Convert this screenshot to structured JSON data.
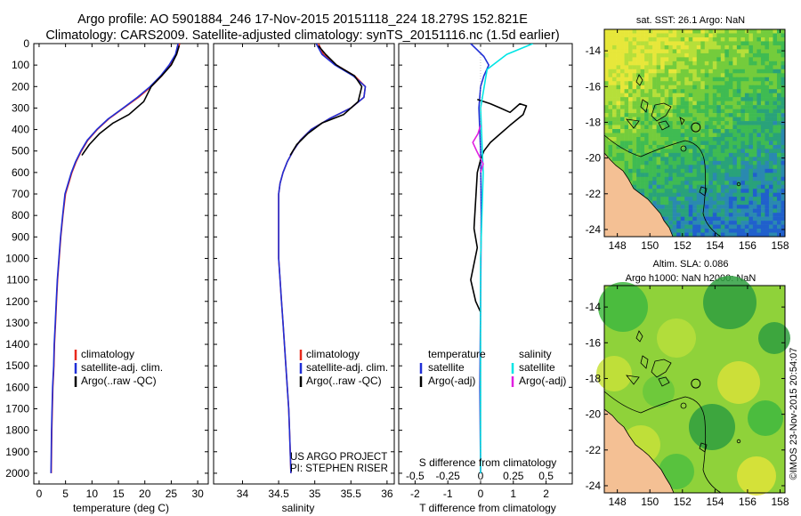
{
  "header": {
    "line1": "Argo profile: AO 5901884_246 17-Nov-2015 20151118_224 18.279S 152.821E",
    "line2": "Climatology: CARS2009. Satellite-adjusted climatology: synTS_20151116.nc (1.5d earlier)"
  },
  "depth_axis": {
    "range": [
      0,
      2050
    ],
    "ticks": [
      0,
      100,
      200,
      300,
      400,
      500,
      600,
      700,
      800,
      900,
      1000,
      1100,
      1200,
      1300,
      1400,
      1500,
      1600,
      1700,
      1800,
      1900,
      2000
    ]
  },
  "chart_data": [
    {
      "type": "line",
      "id": "temperature",
      "xlabel": "temperature (deg C)",
      "xlim": [
        -1,
        32
      ],
      "xticks": [
        0,
        5,
        10,
        15,
        20,
        25,
        30
      ],
      "ylim": [
        2050,
        0
      ],
      "legend": [
        {
          "label": "climatology",
          "color": "#e8291c"
        },
        {
          "label": "satellite-adj. clim.",
          "color": "#1f2ed6"
        },
        {
          "label": "Argo(..raw -QC)",
          "color": "#000000"
        }
      ],
      "series": [
        {
          "name": "climatology",
          "color": "#e8291c",
          "x": [
            26.6,
            26.0,
            24.8,
            23.2,
            21.2,
            18.8,
            16.0,
            13.2,
            11.0,
            9.2,
            8.0,
            7.0,
            6.2,
            5.6,
            5.0,
            4.5,
            4.1,
            3.8,
            3.5,
            3.3,
            3.1,
            2.9,
            2.8,
            2.6,
            2.5,
            2.4,
            2.35,
            2.3
          ],
          "y": [
            0,
            50,
            100,
            150,
            200,
            250,
            300,
            350,
            400,
            450,
            500,
            550,
            600,
            650,
            700,
            800,
            900,
            1000,
            1100,
            1200,
            1300,
            1400,
            1500,
            1600,
            1700,
            1800,
            1900,
            2000
          ]
        },
        {
          "name": "satellite",
          "color": "#1f2ed6",
          "x": [
            26.3,
            25.8,
            24.6,
            23.0,
            21.0,
            18.6,
            15.9,
            13.1,
            10.9,
            9.1,
            7.9,
            6.9,
            6.1,
            5.5,
            4.9,
            4.45,
            4.05,
            3.75,
            3.45,
            3.25,
            3.05,
            2.85,
            2.75,
            2.55,
            2.45,
            2.35,
            2.3,
            2.25
          ],
          "y": [
            0,
            50,
            100,
            150,
            200,
            250,
            300,
            350,
            400,
            450,
            500,
            550,
            600,
            650,
            700,
            800,
            900,
            1000,
            1100,
            1200,
            1300,
            1400,
            1500,
            1600,
            1700,
            1800,
            1900,
            2000
          ]
        },
        {
          "name": "argo",
          "color": "#000000",
          "x": [
            26.5,
            26.0,
            25.0,
            23.2,
            21.2,
            19.8,
            17.0,
            14.0,
            11.4,
            9.5,
            8.1
          ],
          "y": [
            10,
            50,
            100,
            150,
            200,
            270,
            330,
            370,
            420,
            470,
            520
          ]
        }
      ]
    },
    {
      "type": "line",
      "id": "salinity",
      "xlabel": "salinity",
      "xlim": [
        33.6,
        36.1
      ],
      "xticks": [
        34,
        34.5,
        35,
        35.5,
        36
      ],
      "ylim": [
        2050,
        0
      ],
      "legend": [
        {
          "label": "climatology",
          "color": "#e8291c"
        },
        {
          "label": "satellite-adj. clim.",
          "color": "#1f2ed6"
        },
        {
          "label": "Argo(..raw -QC)",
          "color": "#000000"
        }
      ],
      "series": [
        {
          "name": "climatology",
          "color": "#e8291c",
          "x": [
            35.05,
            35.12,
            35.3,
            35.55,
            35.7,
            35.68,
            35.5,
            35.2,
            34.95,
            34.8,
            34.7,
            34.62,
            34.56,
            34.52,
            34.5,
            34.5,
            34.5,
            34.5,
            34.52,
            34.54,
            34.56,
            34.58,
            34.6,
            34.62,
            34.64,
            34.65,
            34.66,
            34.67
          ],
          "y": [
            0,
            50,
            100,
            150,
            200,
            250,
            300,
            350,
            400,
            450,
            500,
            550,
            600,
            650,
            700,
            800,
            900,
            1000,
            1100,
            1200,
            1300,
            1400,
            1500,
            1600,
            1700,
            1800,
            1900,
            2000
          ]
        },
        {
          "name": "satellite",
          "color": "#1f2ed6",
          "x": [
            35.02,
            35.1,
            35.28,
            35.53,
            35.7,
            35.68,
            35.5,
            35.2,
            34.95,
            34.8,
            34.7,
            34.62,
            34.56,
            34.52,
            34.5,
            34.5,
            34.5,
            34.5,
            34.52,
            34.54,
            34.56,
            34.58,
            34.6,
            34.62,
            34.64,
            34.65,
            34.66,
            34.67
          ],
          "y": [
            0,
            50,
            100,
            150,
            200,
            250,
            300,
            350,
            400,
            450,
            500,
            550,
            600,
            650,
            700,
            800,
            900,
            1000,
            1100,
            1200,
            1300,
            1400,
            1500,
            1600,
            1700,
            1800,
            1900,
            2000
          ]
        },
        {
          "name": "argo",
          "color": "#000000",
          "x": [
            35.05,
            35.15,
            35.3,
            35.55,
            35.65,
            35.6,
            35.4,
            35.1,
            34.9,
            34.75,
            34.66
          ],
          "y": [
            10,
            50,
            100,
            150,
            200,
            270,
            330,
            370,
            420,
            470,
            520
          ]
        }
      ],
      "credit": [
        "US ARGO PROJECT",
        "PI: STEPHEN RISER"
      ]
    },
    {
      "type": "line",
      "id": "difference",
      "xlabel_top": "S difference from climatology",
      "xlabel": "T difference from climatology",
      "xlim": [
        -2.5,
        2.8
      ],
      "xticks_T": [
        -2,
        -1,
        0,
        1,
        2
      ],
      "xticks_S": [
        -0.5,
        -0.25,
        0,
        0.25,
        0.5
      ],
      "ylim": [
        2050,
        0
      ],
      "legend_titles": [
        "temperature",
        "salinity"
      ],
      "legend": [
        {
          "label": "satellite",
          "color": "#1f2ed6"
        },
        {
          "label": "Argo(-adj)",
          "color": "#000000"
        },
        {
          "label": "satellite",
          "color": "#00e5e5"
        },
        {
          "label": "Argo(-adj)",
          "color": "#e01ee0"
        }
      ],
      "series": [
        {
          "name": "T satellite",
          "color": "#1f2ed6",
          "x": [
            -0.3,
            -0.1,
            0.1,
            0.25,
            0.1,
            0.0,
            -0.05,
            0.0,
            0.02,
            0.0,
            -0.02,
            0.0
          ],
          "y": [
            0,
            30,
            60,
            100,
            150,
            200,
            300,
            500,
            800,
            1200,
            1600,
            2000
          ]
        },
        {
          "name": "T argo",
          "color": "#000000",
          "x": [
            -0.1,
            0.3,
            0.6,
            0.9,
            1.2,
            1.4,
            1.3,
            0.9,
            0.6,
            0.3,
            0.1,
            0.0,
            -0.1,
            -0.2,
            -0.1,
            -0.3,
            -0.15,
            0.0
          ],
          "y": [
            260,
            280,
            300,
            320,
            280,
            290,
            330,
            380,
            420,
            460,
            500,
            540,
            600,
            860,
            950,
            1100,
            1200,
            1250
          ]
        },
        {
          "name": "S satellite",
          "color": "#00e5e5",
          "x": [
            0.4,
            0.2,
            0.05,
            0.0,
            0.02,
            0.0,
            0.0,
            0.0
          ],
          "y": [
            0,
            50,
            120,
            300,
            600,
            1000,
            1500,
            2000
          ]
        },
        {
          "name": "S argo",
          "color": "#e01ee0",
          "x": [
            0.0,
            -0.02,
            -0.06,
            -0.03,
            0.02,
            0.0
          ],
          "y": [
            380,
            420,
            460,
            500,
            560,
            600
          ]
        }
      ]
    }
  ],
  "maps": [
    {
      "id": "sst",
      "title": "sat. SST: 26.1  Argo: NaN",
      "lon_ticks": [
        148,
        150,
        152,
        154,
        156,
        158
      ],
      "lat_ticks": [
        -14,
        -16,
        -18,
        -20,
        -22,
        -24
      ],
      "lon_range": [
        147.2,
        158.3
      ],
      "lat_range": [
        -24.4,
        -12.8
      ],
      "float_position": {
        "lon": 152.821,
        "lat": -18.279
      }
    },
    {
      "id": "sla",
      "title_line1": "Altim. SLA: 0.086",
      "title_line2": "Argo h1000: NaN h2000: NaN",
      "lon_ticks": [
        148,
        150,
        152,
        154,
        156,
        158
      ],
      "lat_ticks": [
        -14,
        -16,
        -18,
        -20,
        -22,
        -24
      ],
      "lon_range": [
        147.2,
        158.3
      ],
      "lat_range": [
        -24.4,
        -12.8
      ],
      "float_position": {
        "lon": 152.821,
        "lat": -18.279
      }
    }
  ],
  "footer_note": "©IMOS 23-Nov-2015 20:54:07"
}
